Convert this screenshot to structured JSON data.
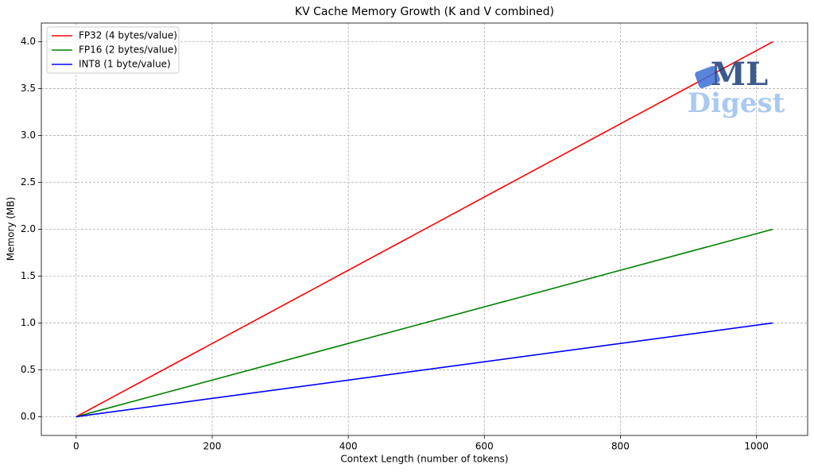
{
  "chart_data": {
    "type": "line",
    "title": "KV Cache Memory Growth (K and V combined)",
    "x_label": "Context Length (number of tokens)",
    "y_label": "Memory (MB)",
    "x": [
      0,
      1024
    ],
    "series": [
      {
        "name": "FP32 (4 bytes/value)",
        "color": "#ff0000",
        "values": [
          0,
          4.0
        ]
      },
      {
        "name": "FP16 (2 bytes/value)",
        "color": "#008000",
        "values": [
          0,
          2.0
        ]
      },
      {
        "name": "INT8 (1 byte/value)",
        "color": "#0000ff",
        "values": [
          0,
          1.0
        ]
      }
    ],
    "xlim": [
      -51.2,
      1075.2
    ],
    "ylim": [
      -0.2,
      4.2
    ],
    "xticks": [
      0,
      200,
      400,
      600,
      800,
      1000
    ],
    "yticks": [
      {
        "value": 0,
        "label": "0.0"
      },
      0.5,
      {
        "value": 1,
        "label": "1.0"
      },
      1.5,
      {
        "value": 2,
        "label": "2.0"
      },
      2.5,
      {
        "value": 3,
        "label": "3.0"
      },
      3.5,
      {
        "value": 4,
        "label": "4.0"
      }
    ],
    "grid": true,
    "legend": "upper-left",
    "watermark": {
      "line1": "ML",
      "line2": "Digest"
    }
  }
}
